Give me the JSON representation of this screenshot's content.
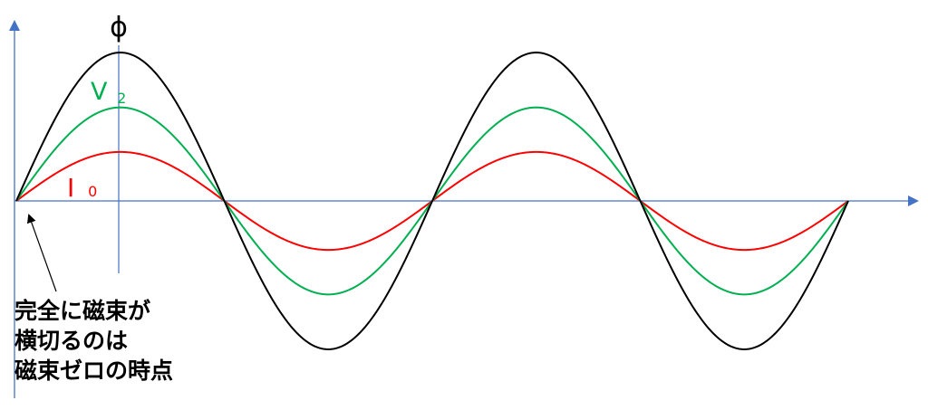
{
  "labels": {
    "phi": "ϕ",
    "v_main": "V",
    "v_sub": "2",
    "i_main": "I",
    "i_sub": "0"
  },
  "note_lines": [
    "完全に磁束が",
    "横切るのは",
    "磁束ゼロの時点"
  ],
  "colors": {
    "axis": "#4472C4",
    "phi": "#000000",
    "v2": "#00B050",
    "i0": "#FF0000",
    "label_v2": "#00B050",
    "label_i0": "#FF0000"
  },
  "chart_data": {
    "type": "line",
    "x_unit": "periods",
    "x_range": [
      0,
      2
    ],
    "amplitude_unit": "relative",
    "series": [
      {
        "key": "phi",
        "amplitude": 1.0,
        "phase_shift": 0
      },
      {
        "key": "v2",
        "amplitude": 0.63,
        "phase_shift": 0
      },
      {
        "key": "i0",
        "amplitude": 0.33,
        "phase_shift": 0
      }
    ],
    "grid": false
  }
}
